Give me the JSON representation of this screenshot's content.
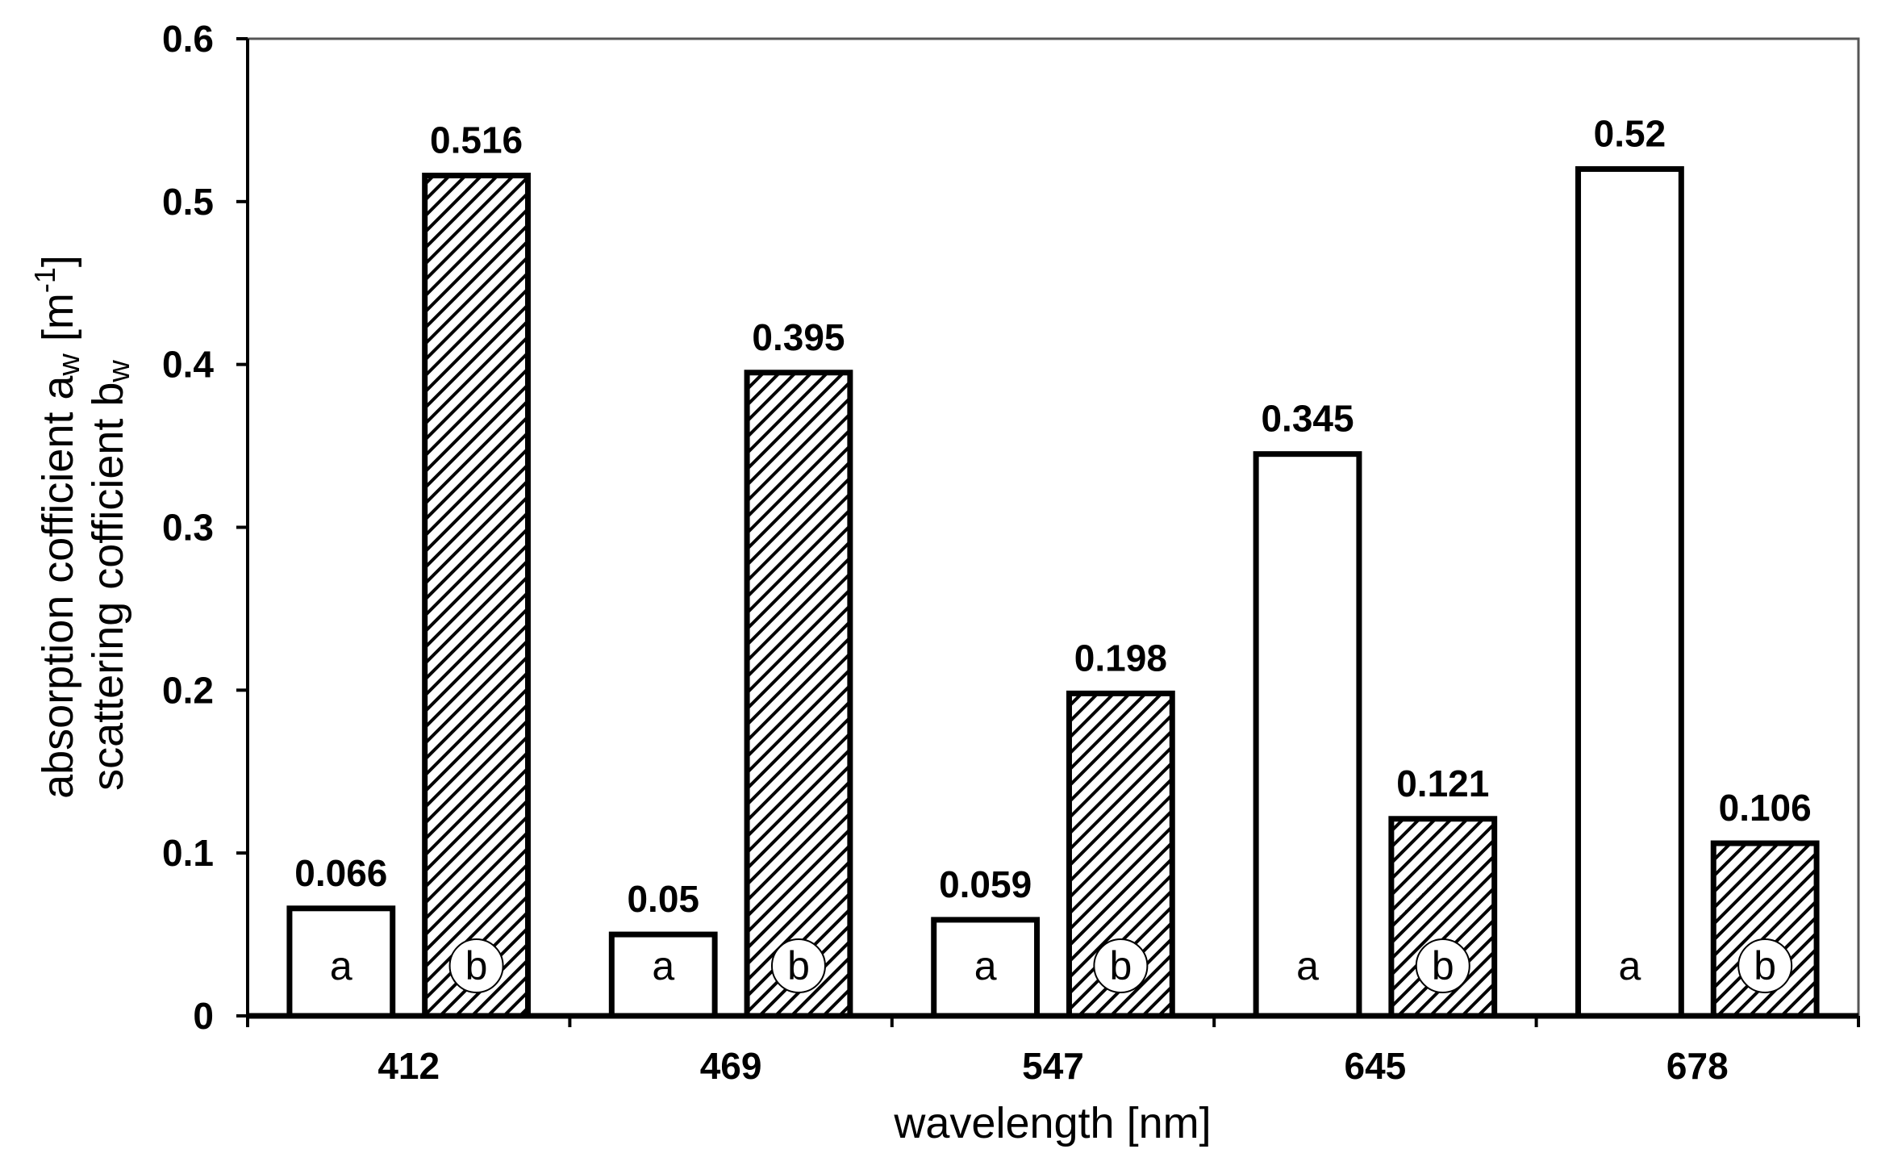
{
  "chart_data": {
    "type": "bar",
    "categories": [
      "412",
      "469",
      "547",
      "645",
      "678"
    ],
    "series": [
      {
        "tag": "a",
        "fill": "#ffffff",
        "pattern": "none",
        "values": [
          0.066,
          0.05,
          0.059,
          0.345,
          0.52
        ],
        "value_labels": [
          "0.066",
          "0.05",
          "0.059",
          "0.345",
          "0.52"
        ]
      },
      {
        "tag": "b",
        "fill": "#ffffff",
        "pattern": "diagonal-hatch",
        "values": [
          0.516,
          0.395,
          0.198,
          0.121,
          0.106
        ],
        "value_labels": [
          "0.516",
          "0.395",
          "0.198",
          "0.121",
          "0.106"
        ]
      }
    ],
    "xlabel": "wavelength  [nm]",
    "ylabel": {
      "line1_main": "absorption cofficient  a",
      "line1_sub": "w",
      "line1_end": "  [m",
      "line1_sup": "-1",
      "line1_close": "]",
      "line2_main": "scattering cofficient  b",
      "line2_sub": "w"
    },
    "ylim": [
      0,
      0.6
    ],
    "yticks": [
      "0",
      "0.1",
      "0.2",
      "0.3",
      "0.4",
      "0.5",
      "0.6"
    ],
    "grid": false,
    "legend": "none",
    "colors": {
      "axis": "#000000",
      "bar_stroke": "#000000",
      "hatch": "#000000"
    }
  }
}
